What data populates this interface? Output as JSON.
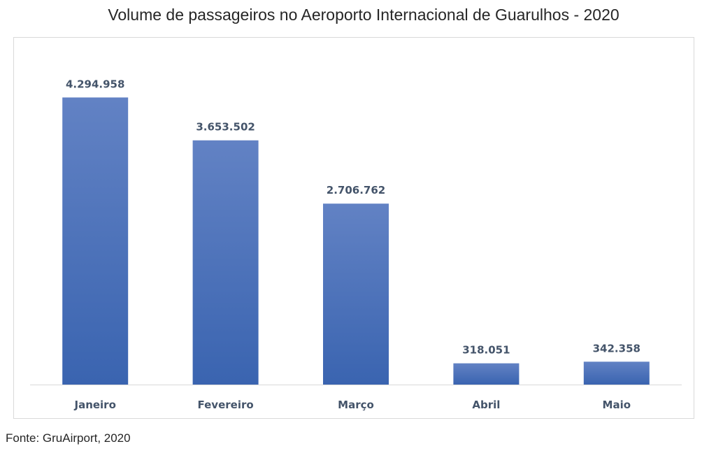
{
  "chart_data": {
    "type": "bar",
    "title": "Volume de passageiros no Aeroporto Internacional de Guarulhos - 2020",
    "categories": [
      "Janeiro",
      "Fevereiro",
      "Março",
      "Abril",
      "Maio"
    ],
    "values": [
      4294958,
      3653502,
      2706762,
      318051,
      342358
    ],
    "data_labels": [
      "4.294.958",
      "3.653.502",
      "2.706.762",
      "318.051",
      "342.358"
    ],
    "xlabel": "",
    "ylabel": "",
    "ylim": [
      0,
      5000000
    ],
    "grid": false,
    "legend": "none",
    "colors": {
      "bar_top": "#6282c4",
      "bar_bottom": "#3a64b0",
      "label": "#44546a",
      "axis": "#d9d9d9"
    }
  },
  "source": "Fonte: GruAirport, 2020"
}
